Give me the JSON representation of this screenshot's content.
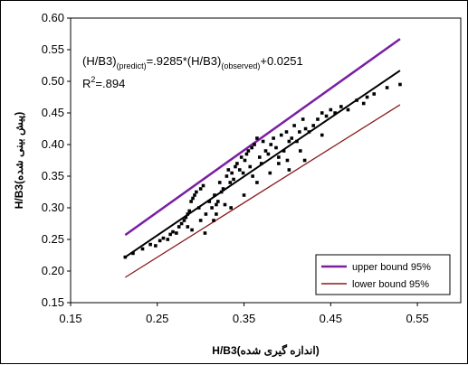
{
  "chart_data": {
    "type": "scatter",
    "title": "",
    "xlabel": "H/B3(اندازه گیری شده)",
    "ylabel": "H/B3(پیش بینی شده)",
    "xlim": [
      0.15,
      0.6
    ],
    "ylim": [
      0.15,
      0.6
    ],
    "x_ticks": [
      "0.15",
      "0.25",
      "0.35",
      "0.45",
      "0.55"
    ],
    "y_ticks": [
      "0.15",
      "0.20",
      "0.25",
      "0.30",
      "0.35",
      "0.40",
      "0.45",
      "0.50",
      "0.55",
      "0.60"
    ],
    "grid": false,
    "annotation": {
      "equation_main": "(H/B3)",
      "equation_sub1": "(predict)",
      "equation_mid": "=.9285*(H/B3)",
      "equation_sub2": "(observed)",
      "equation_tail": "+0.0251",
      "r2_prefix": "R",
      "r2_sup": "2",
      "r2_value": "=.894"
    },
    "lines": [
      {
        "name": "upper bound 95%",
        "color": "#7a1fa2",
        "x": [
          0.213,
          0.53
        ],
        "y": [
          0.257,
          0.567
        ]
      },
      {
        "name": "fit",
        "color": "#000000",
        "x": [
          0.213,
          0.53
        ],
        "y": [
          0.222,
          0.517
        ]
      },
      {
        "name": "lower bound 95%",
        "color": "#8b1a1a",
        "x": [
          0.213,
          0.53
        ],
        "y": [
          0.19,
          0.463
        ]
      }
    ],
    "legend": {
      "position": "bottom-right",
      "entries": [
        {
          "label": "upper bound 95%",
          "color": "#7a1fa2"
        },
        {
          "label": "lower  bound 95%",
          "color": "#8b1a1a"
        }
      ]
    },
    "points": {
      "x": [
        0.213,
        0.222,
        0.233,
        0.242,
        0.248,
        0.253,
        0.257,
        0.262,
        0.265,
        0.268,
        0.272,
        0.275,
        0.278,
        0.281,
        0.283,
        0.285,
        0.287,
        0.289,
        0.291,
        0.293,
        0.295,
        0.298,
        0.3,
        0.303,
        0.306,
        0.31,
        0.313,
        0.316,
        0.318,
        0.32,
        0.322,
        0.324,
        0.326,
        0.33,
        0.332,
        0.334,
        0.336,
        0.338,
        0.34,
        0.342,
        0.345,
        0.347,
        0.349,
        0.351,
        0.353,
        0.355,
        0.357,
        0.359,
        0.362,
        0.365,
        0.368,
        0.37,
        0.372,
        0.375,
        0.378,
        0.381,
        0.384,
        0.387,
        0.39,
        0.393,
        0.396,
        0.399,
        0.402,
        0.405,
        0.408,
        0.411,
        0.414,
        0.418,
        0.421,
        0.425,
        0.43,
        0.435,
        0.44,
        0.445,
        0.45,
        0.455,
        0.462,
        0.47,
        0.48,
        0.488,
        0.492,
        0.5,
        0.515,
        0.53,
        0.285,
        0.29,
        0.3,
        0.318,
        0.335,
        0.35,
        0.365,
        0.38,
        0.402,
        0.4,
        0.415,
        0.42,
        0.315,
        0.305,
        0.328,
        0.36,
        0.39,
        0.44
      ],
      "y": [
        0.222,
        0.228,
        0.235,
        0.242,
        0.24,
        0.248,
        0.252,
        0.25,
        0.258,
        0.262,
        0.26,
        0.27,
        0.275,
        0.28,
        0.285,
        0.29,
        0.295,
        0.31,
        0.315,
        0.32,
        0.325,
        0.3,
        0.33,
        0.335,
        0.29,
        0.31,
        0.3,
        0.32,
        0.305,
        0.31,
        0.34,
        0.325,
        0.33,
        0.35,
        0.36,
        0.34,
        0.355,
        0.345,
        0.365,
        0.37,
        0.36,
        0.38,
        0.355,
        0.375,
        0.385,
        0.39,
        0.365,
        0.395,
        0.4,
        0.41,
        0.38,
        0.37,
        0.405,
        0.39,
        0.385,
        0.4,
        0.41,
        0.395,
        0.38,
        0.415,
        0.39,
        0.42,
        0.405,
        0.41,
        0.43,
        0.405,
        0.42,
        0.44,
        0.425,
        0.42,
        0.43,
        0.44,
        0.45,
        0.445,
        0.455,
        0.45,
        0.46,
        0.455,
        0.47,
        0.465,
        0.475,
        0.48,
        0.49,
        0.495,
        0.27,
        0.265,
        0.28,
        0.29,
        0.3,
        0.32,
        0.34,
        0.355,
        0.36,
        0.375,
        0.39,
        0.375,
        0.28,
        0.26,
        0.305,
        0.35,
        0.37,
        0.415
      ]
    }
  }
}
